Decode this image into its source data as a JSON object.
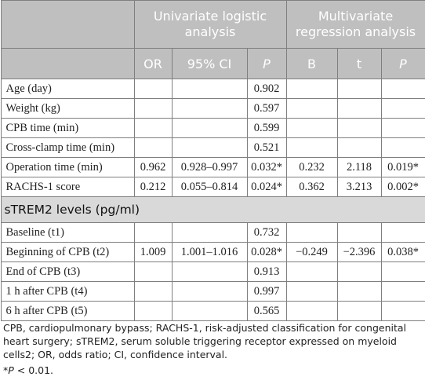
{
  "header": {
    "univariate_title": "Univariate logistic analysis",
    "multivariate_title": "Multivariate regression analysis",
    "columns": [
      "OR",
      "95% CI",
      "P",
      "B",
      "t",
      "P"
    ]
  },
  "rows_top": [
    {
      "label": "Age (day)",
      "or": "",
      "ci": "",
      "p1": "0.902",
      "b": "",
      "t": "",
      "p2": ""
    },
    {
      "label": "Weight (kg)",
      "or": "",
      "ci": "",
      "p1": "0.597",
      "b": "",
      "t": "",
      "p2": ""
    },
    {
      "label": "CPB time (min)",
      "or": "",
      "ci": "",
      "p1": "0.599",
      "b": "",
      "t": "",
      "p2": ""
    },
    {
      "label": "Cross-clamp time (min)",
      "or": "",
      "ci": "",
      "p1": "0.521",
      "b": "",
      "t": "",
      "p2": ""
    },
    {
      "label": "Operation time (min)",
      "or": "0.962",
      "ci": "0.928–0.997",
      "p1": "0.032*",
      "b": "0.232",
      "t": "2.118",
      "p2": "0.019*"
    },
    {
      "label": "RACHS-1 score",
      "or": "0.212",
      "ci": "0.055–0.814",
      "p1": "0.024*",
      "b": "0.362",
      "t": "3.213",
      "p2": "0.002*"
    }
  ],
  "section_label": "sTREM2 levels (pg/ml)",
  "rows_bottom": [
    {
      "label": "Baseline (t1)",
      "or": "",
      "ci": "",
      "p1": "0.732",
      "b": "",
      "t": "",
      "p2": ""
    },
    {
      "label": "Beginning of CPB (t2)",
      "or": "1.009",
      "ci": "1.001–1.016",
      "p1": "0.028*",
      "b": "−0.249",
      "t": "−2.396",
      "p2": "0.038*"
    },
    {
      "label": "End of CPB (t3)",
      "or": "",
      "ci": "",
      "p1": "0.913",
      "b": "",
      "t": "",
      "p2": ""
    },
    {
      "label": "1 h after CPB (t4)",
      "or": "",
      "ci": "",
      "p1": "0.997",
      "b": "",
      "t": "",
      "p2": ""
    },
    {
      "label": "6 h after CPB (t5)",
      "or": "",
      "ci": "",
      "p1": "0.565",
      "b": "",
      "t": "",
      "p2": ""
    }
  ],
  "footnote": {
    "abbreviations": "CPB, cardiopulmonary bypass; RACHS-1, risk-adjusted classification for congenital heart surgery; sTREM2, serum soluble triggering receptor expressed on myeloid cells2; OR, odds ratio; CI, confidence interval.",
    "significance_prefix": "*",
    "significance_symbol": "P",
    "significance_text": " < 0.01."
  }
}
